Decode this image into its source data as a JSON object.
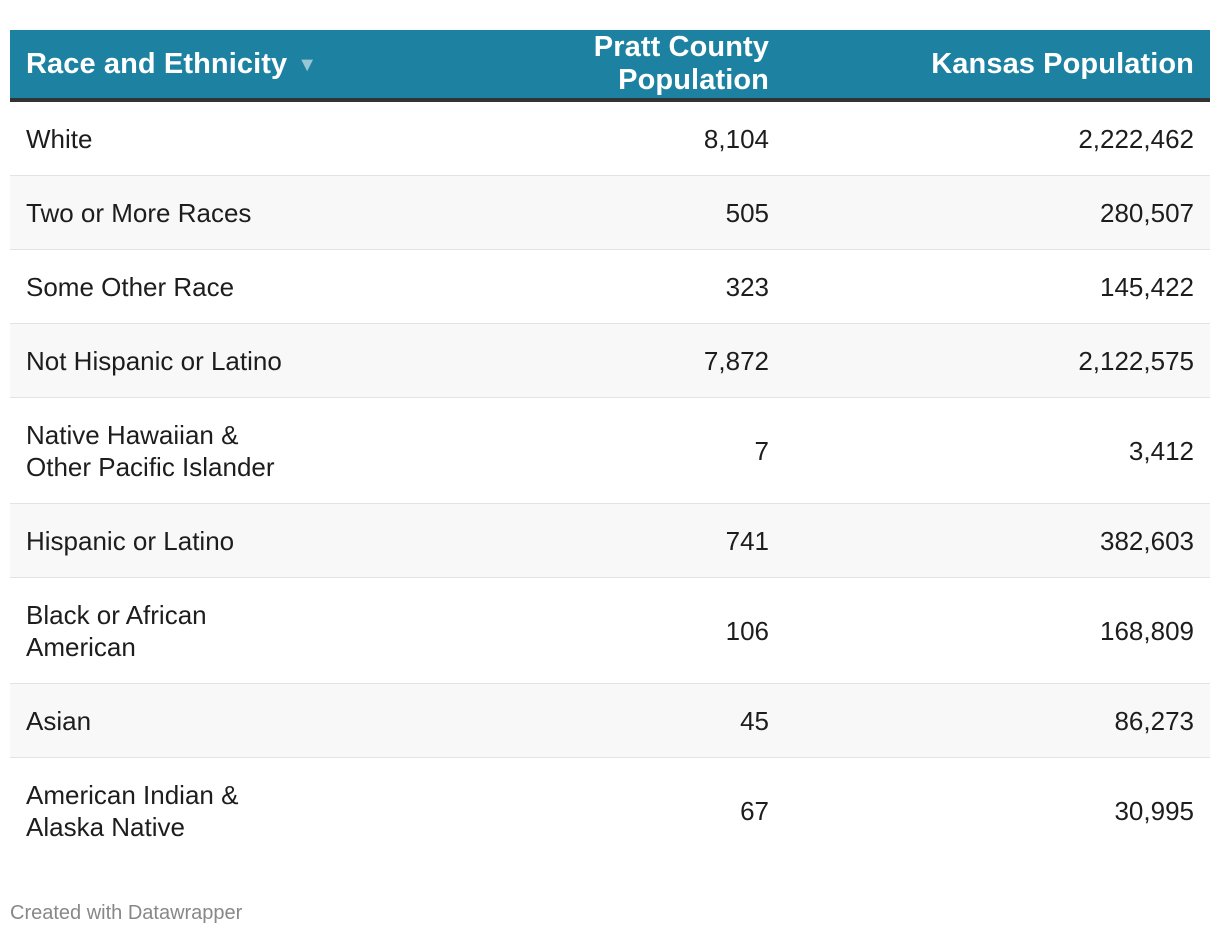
{
  "table": {
    "headers": {
      "race": "Race and Ethnicity",
      "sort_icon": "sort-down-icon",
      "county": "Pratt County Population",
      "state": "Kansas Population"
    },
    "rows": [
      {
        "race": "White",
        "county": "8,104",
        "state": "2,222,462"
      },
      {
        "race": "Two or More Races",
        "county": "505",
        "state": "280,507"
      },
      {
        "race": "Some Other Race",
        "county": "323",
        "state": "145,422"
      },
      {
        "race": "Not Hispanic or Latino",
        "county": "7,872",
        "state": "2,122,575"
      },
      {
        "race": "Native Hawaiian &\nOther Pacific Islander",
        "county": "7",
        "state": "3,412"
      },
      {
        "race": "Hispanic or Latino",
        "county": "741",
        "state": "382,603"
      },
      {
        "race": "Black or African\nAmerican",
        "county": "106",
        "state": "168,809"
      },
      {
        "race": "Asian",
        "county": "45",
        "state": "86,273"
      },
      {
        "race": "American Indian &\nAlaska Native",
        "county": "67",
        "state": "30,995"
      }
    ]
  },
  "footer": {
    "credit": "Created with Datawrapper"
  },
  "colors": {
    "header_bg": "#1d81a2",
    "header_text": "#ffffff",
    "row_alt": "#f8f8f8"
  },
  "chart_data": {
    "type": "table",
    "columns": [
      "Race and Ethnicity",
      "Pratt County Population",
      "Kansas Population"
    ],
    "categories": [
      "White",
      "Two or More Races",
      "Some Other Race",
      "Not Hispanic or Latino",
      "Native Hawaiian & Other Pacific Islander",
      "Hispanic or Latino",
      "Black or African American",
      "Asian",
      "American Indian & Alaska Native"
    ],
    "series": [
      {
        "name": "Pratt County Population",
        "values": [
          8104,
          505,
          323,
          7872,
          7,
          741,
          106,
          45,
          67
        ]
      },
      {
        "name": "Kansas Population",
        "values": [
          2222462,
          280507,
          145422,
          2122575,
          3412,
          382603,
          168809,
          86273,
          30995
        ]
      }
    ]
  }
}
